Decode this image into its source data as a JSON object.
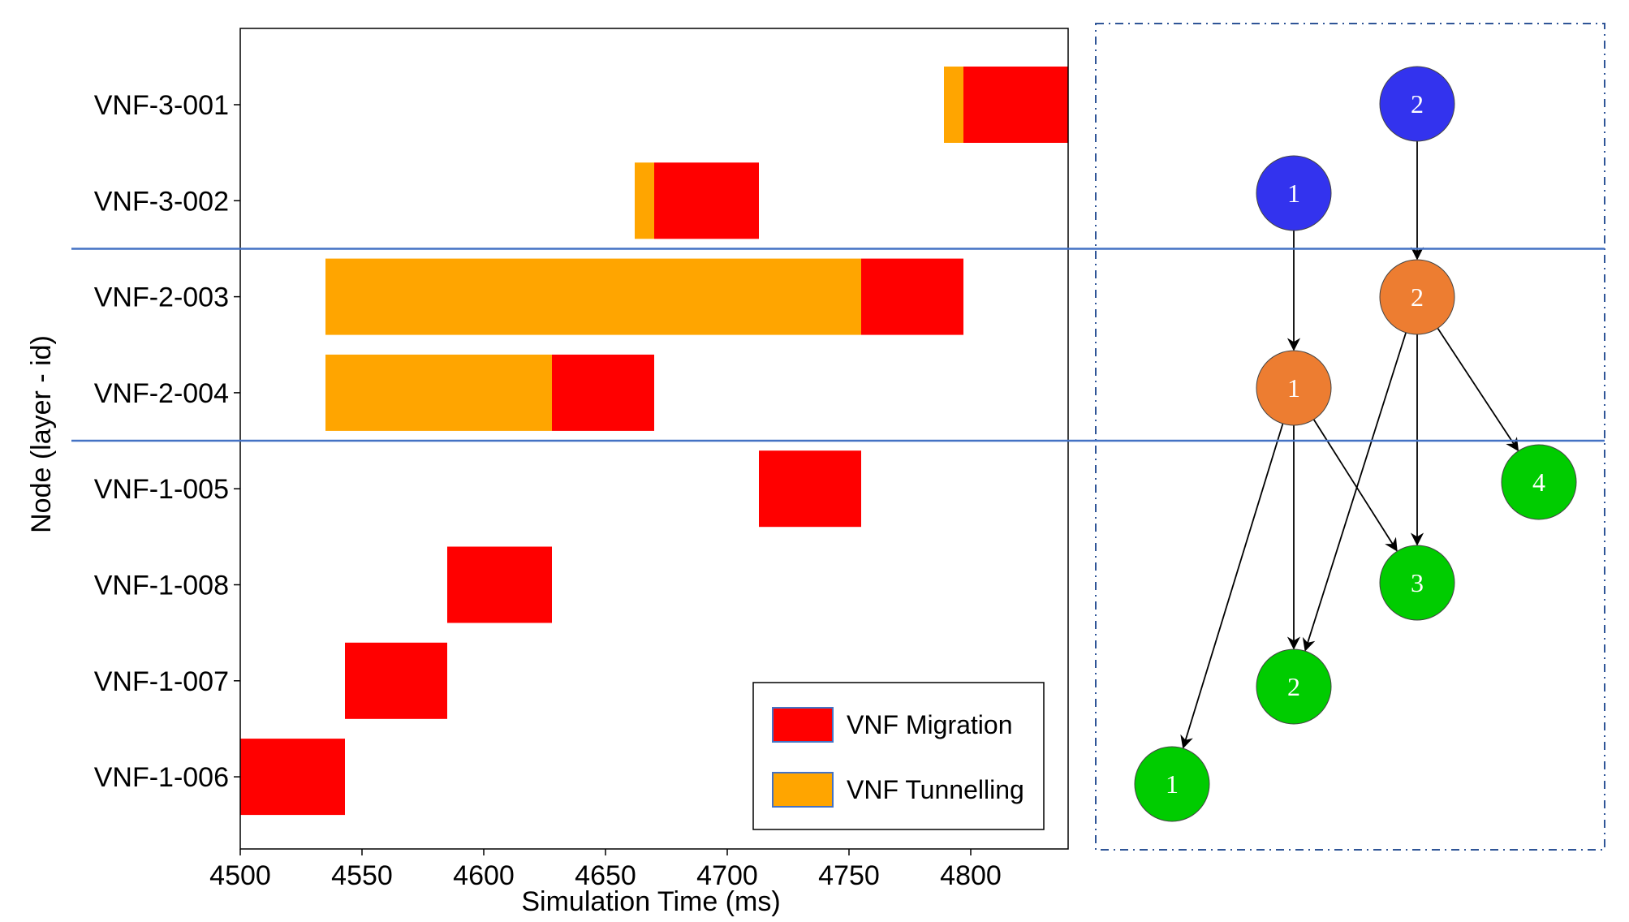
{
  "chart_data": {
    "type": "gantt",
    "xlabel": "Simulation Time (ms)",
    "ylabel": "Node (layer - id)",
    "xlim": [
      4500,
      4840
    ],
    "xticks": [
      4500,
      4550,
      4600,
      4650,
      4700,
      4750,
      4800
    ],
    "rows": [
      "VNF-3-001",
      "VNF-3-002",
      "VNF-2-003",
      "VNF-2-004",
      "VNF-1-005",
      "VNF-1-008",
      "VNF-1-007",
      "VNF-1-006"
    ],
    "series": [
      {
        "name": "VNF Migration",
        "color": "#ff0000",
        "tasks": [
          {
            "row": "VNF-3-001",
            "start": 4797,
            "end": 4840
          },
          {
            "row": "VNF-3-002",
            "start": 4670,
            "end": 4713
          },
          {
            "row": "VNF-2-003",
            "start": 4755,
            "end": 4797
          },
          {
            "row": "VNF-2-004",
            "start": 4628,
            "end": 4670
          },
          {
            "row": "VNF-1-005",
            "start": 4713,
            "end": 4755
          },
          {
            "row": "VNF-1-008",
            "start": 4585,
            "end": 4628
          },
          {
            "row": "VNF-1-007",
            "start": 4543,
            "end": 4585
          },
          {
            "row": "VNF-1-006",
            "start": 4500,
            "end": 4543
          }
        ]
      },
      {
        "name": "VNF Tunnelling",
        "color": "#ffa500",
        "tasks": [
          {
            "row": "VNF-3-001",
            "start": 4789,
            "end": 4797
          },
          {
            "row": "VNF-3-002",
            "start": 4662,
            "end": 4670
          },
          {
            "row": "VNF-2-003",
            "start": 4535,
            "end": 4755
          },
          {
            "row": "VNF-2-004",
            "start": 4535,
            "end": 4628
          }
        ]
      }
    ],
    "layer_separators_after_rows": [
      "VNF-3-002",
      "VNF-2-004"
    ],
    "legend_position": "lower-right"
  },
  "graph": {
    "layers": [
      {
        "layer": 3,
        "color": "#3333ee",
        "nodes": [
          "1",
          "2"
        ]
      },
      {
        "layer": 2,
        "color": "#ed7d31",
        "nodes": [
          "1",
          "2"
        ]
      },
      {
        "layer": 1,
        "color": "#00cc00",
        "nodes": [
          "1",
          "2",
          "3",
          "4"
        ]
      }
    ],
    "edges": [
      {
        "from": "L3-1",
        "to": "L2-1"
      },
      {
        "from": "L3-2",
        "to": "L2-2"
      },
      {
        "from": "L2-1",
        "to": "L1-1"
      },
      {
        "from": "L2-1",
        "to": "L1-2"
      },
      {
        "from": "L2-1",
        "to": "L1-3"
      },
      {
        "from": "L2-2",
        "to": "L1-2"
      },
      {
        "from": "L2-2",
        "to": "L1-3"
      },
      {
        "from": "L2-2",
        "to": "L1-4"
      }
    ]
  },
  "colors": {
    "separator": "#4472c4",
    "frame": "#2f5597",
    "axis": "#000000"
  }
}
